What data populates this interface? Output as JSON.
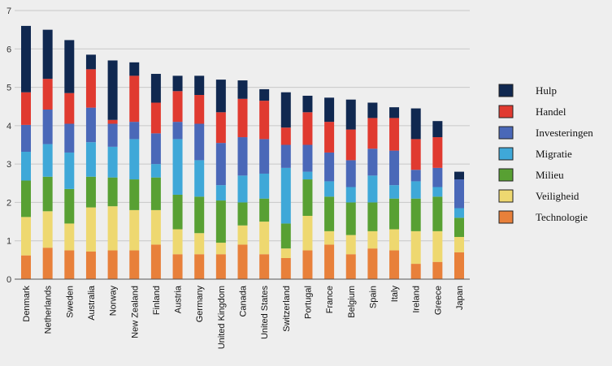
{
  "chart_data": {
    "type": "bar",
    "stacked": true,
    "categories": [
      "Denmark",
      "Netherlands",
      "Sweden",
      "Australia",
      "Norway",
      "New Zealand",
      "Finland",
      "Austria",
      "Germany",
      "United Kingdom",
      "Canada",
      "United States",
      "Switzerland",
      "Portugal",
      "France",
      "Belgium",
      "Spain",
      "Italy",
      "Ireland",
      "Greece",
      "Japan"
    ],
    "series": [
      {
        "name": "Technologie",
        "color": "#e8803a",
        "values": [
          0.62,
          0.82,
          0.75,
          0.72,
          0.75,
          0.75,
          0.9,
          0.65,
          0.65,
          0.65,
          0.9,
          0.65,
          0.55,
          0.75,
          0.9,
          0.65,
          0.8,
          0.75,
          0.4,
          0.45,
          0.7
        ]
      },
      {
        "name": "Veiligheid",
        "color": "#eed870",
        "values": [
          1.0,
          0.95,
          0.7,
          1.15,
          1.15,
          1.05,
          0.9,
          0.65,
          0.55,
          0.3,
          0.5,
          0.85,
          0.25,
          0.9,
          0.35,
          0.5,
          0.45,
          0.55,
          0.85,
          0.8,
          0.4
        ]
      },
      {
        "name": "Milieu",
        "color": "#58a033",
        "values": [
          0.95,
          0.9,
          0.9,
          0.8,
          0.75,
          0.8,
          0.85,
          0.9,
          0.95,
          1.1,
          0.6,
          0.6,
          0.65,
          0.95,
          0.9,
          0.85,
          0.75,
          0.8,
          0.85,
          0.9,
          0.5
        ]
      },
      {
        "name": "Migratie",
        "color": "#3fa8d8",
        "values": [
          0.75,
          0.85,
          0.95,
          0.9,
          0.8,
          1.05,
          0.35,
          1.45,
          0.95,
          0.4,
          0.7,
          0.65,
          1.45,
          0.2,
          0.4,
          0.4,
          0.7,
          0.35,
          0.45,
          0.25,
          0.25
        ]
      },
      {
        "name": "Investeringen",
        "color": "#4a68b8",
        "values": [
          0.7,
          0.9,
          0.75,
          0.9,
          0.6,
          0.45,
          0.8,
          0.45,
          0.95,
          1.1,
          1.0,
          0.9,
          0.6,
          0.7,
          0.75,
          0.7,
          0.7,
          0.9,
          0.3,
          0.5,
          0.75
        ]
      },
      {
        "name": "Handel",
        "color": "#e03a30",
        "values": [
          0.85,
          0.8,
          0.8,
          1.0,
          0.1,
          1.2,
          0.8,
          0.8,
          0.75,
          0.8,
          1.0,
          1.0,
          0.45,
          0.85,
          0.8,
          0.8,
          0.8,
          0.85,
          0.8,
          0.8,
          0.0
        ]
      },
      {
        "name": "Hulp",
        "color": "#102850",
        "values": [
          1.73,
          1.28,
          1.38,
          0.38,
          1.55,
          0.35,
          0.75,
          0.4,
          0.5,
          0.85,
          0.48,
          0.3,
          0.92,
          0.43,
          0.63,
          0.78,
          0.4,
          0.28,
          0.8,
          0.42,
          0.2
        ]
      }
    ],
    "ylim": [
      0,
      7
    ],
    "yticks": [
      0,
      1,
      2,
      3,
      4,
      5,
      6,
      7
    ],
    "legend_position": "right",
    "grid": true
  }
}
